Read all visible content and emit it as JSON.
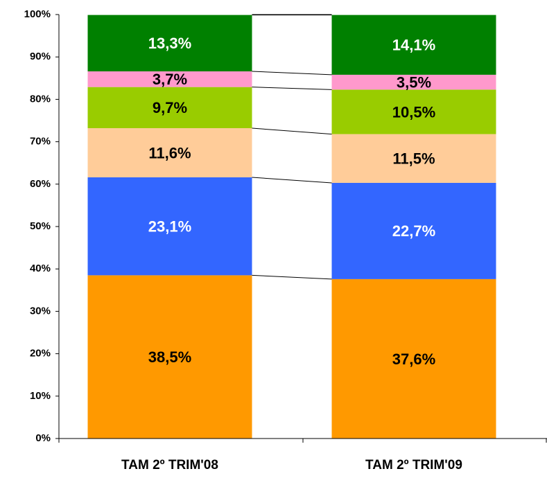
{
  "chart_data": {
    "type": "stacked_bar",
    "categories": [
      "TAM 2º TRIM'08",
      "TAM 2º TRIM'09"
    ],
    "series": [
      {
        "color": "#ff9900",
        "label_color": "#000000",
        "values": [
          38.5,
          37.6
        ],
        "value_labels": [
          "38,5%",
          "37,6%"
        ]
      },
      {
        "color": "#3366ff",
        "label_color": "#ffffff",
        "values": [
          23.1,
          22.7
        ],
        "value_labels": [
          "23,1%",
          "22,7%"
        ]
      },
      {
        "color": "#ffcc99",
        "label_color": "#000000",
        "values": [
          11.6,
          11.5
        ],
        "value_labels": [
          "11,6%",
          "11,5%"
        ]
      },
      {
        "color": "#99cc00",
        "label_color": "#000000",
        "values": [
          9.7,
          10.5
        ],
        "value_labels": [
          "9,7%",
          "10,5%"
        ]
      },
      {
        "color": "#ff99cc",
        "label_color": "#000000",
        "values": [
          3.7,
          3.5
        ],
        "value_labels": [
          "3,7%",
          "3,5%"
        ]
      },
      {
        "color": "#008000",
        "label_color": "#ffffff",
        "values": [
          13.3,
          14.1
        ],
        "value_labels": [
          "13,3%",
          "14,1%"
        ]
      }
    ],
    "ylim": [
      0,
      100
    ],
    "yticks": [
      {
        "value": 0,
        "label": "0%"
      },
      {
        "value": 10,
        "label": "10%"
      },
      {
        "value": 20,
        "label": "20%"
      },
      {
        "value": 30,
        "label": "30%"
      },
      {
        "value": 40,
        "label": "40%"
      },
      {
        "value": 50,
        "label": "50%"
      },
      {
        "value": 60,
        "label": "60%"
      },
      {
        "value": 70,
        "label": "70%"
      },
      {
        "value": 80,
        "label": "80%"
      },
      {
        "value": 90,
        "label": "90%"
      },
      {
        "value": 100,
        "label": "100%"
      }
    ]
  }
}
